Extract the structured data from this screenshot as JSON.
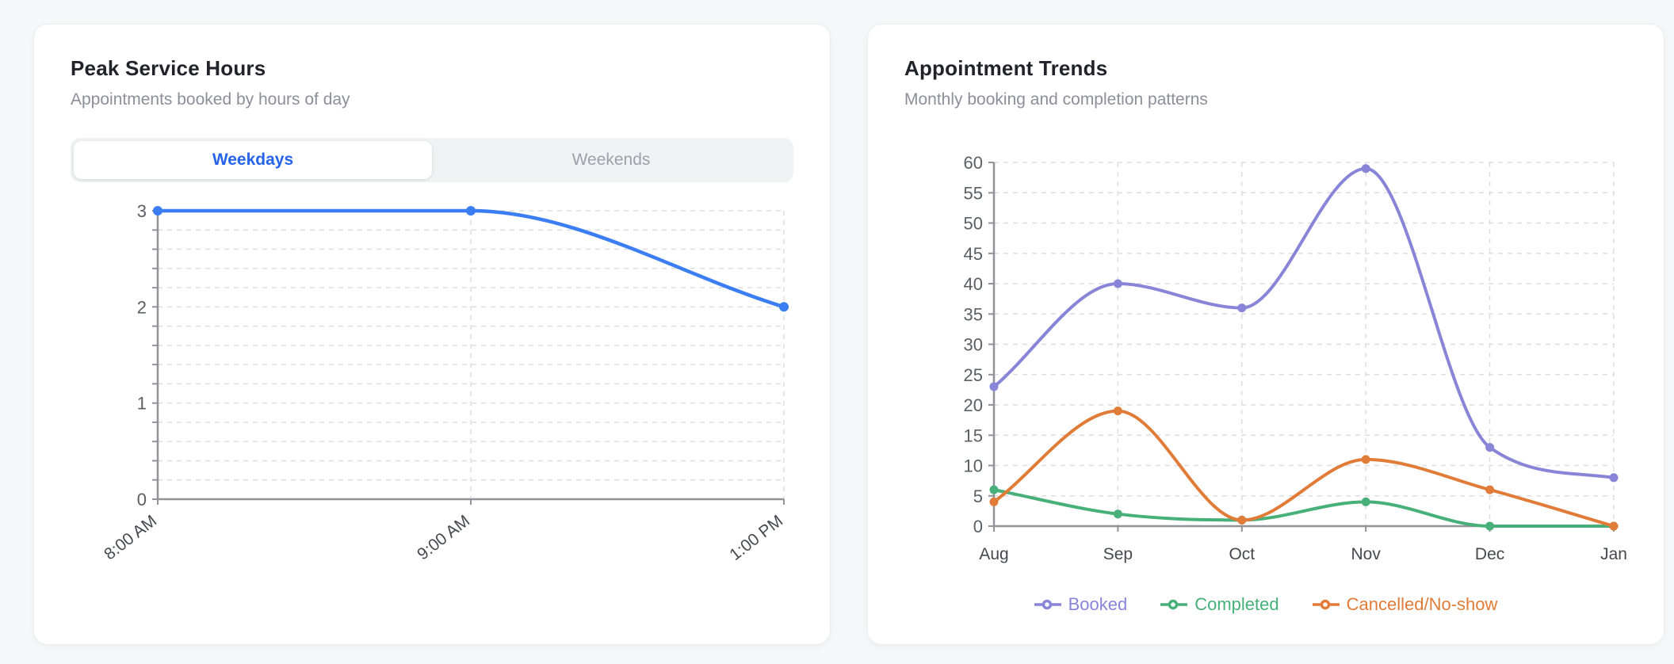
{
  "page": {
    "background": "#f6f7f8"
  },
  "cards": [
    {
      "title": "Peak Service Hours",
      "subtitle": "Appointments booked by hours of day",
      "toggle": {
        "options": [
          {
            "label": "Weekdays",
            "active": true
          },
          {
            "label": "Weekends",
            "active": false
          }
        ],
        "active_color": "#2563eb"
      }
    },
    {
      "title": "Appointment Trends",
      "subtitle": "Monthly booking and completion patterns"
    }
  ],
  "chart_data": [
    {
      "type": "line",
      "title": "Peak Service Hours (Weekdays)",
      "categories": [
        "8:00 AM",
        "9:00 AM",
        "1:00 PM"
      ],
      "series": [
        {
          "name": "Weekdays",
          "color": "#3b7df3",
          "values": [
            3,
            3,
            2
          ]
        }
      ],
      "xlabel": "",
      "ylabel": "",
      "ylim": [
        0,
        3
      ],
      "y_grid_step": 0.2,
      "y_label_step": 1,
      "grid": true,
      "curve": "monotone",
      "legend": "none"
    },
    {
      "type": "line",
      "title": "Appointment Trends",
      "categories": [
        "Aug",
        "Sep",
        "Oct",
        "Nov",
        "Dec",
        "Jan"
      ],
      "series": [
        {
          "name": "Booked",
          "color": "#8884d8",
          "values": [
            23,
            40,
            36,
            59,
            13,
            8
          ]
        },
        {
          "name": "Completed",
          "color": "#46b078",
          "values": [
            6,
            2,
            1,
            4,
            0,
            0
          ]
        },
        {
          "name": "Cancelled/No-show",
          "color": "#e07c38",
          "values": [
            4,
            19,
            1,
            11,
            6,
            0
          ]
        }
      ],
      "xlabel": "",
      "ylabel": "",
      "ylim": [
        0,
        60
      ],
      "y_grid_step": 5,
      "y_label_step": 5,
      "grid": true,
      "curve": "monotone",
      "legend": "bottom"
    }
  ]
}
